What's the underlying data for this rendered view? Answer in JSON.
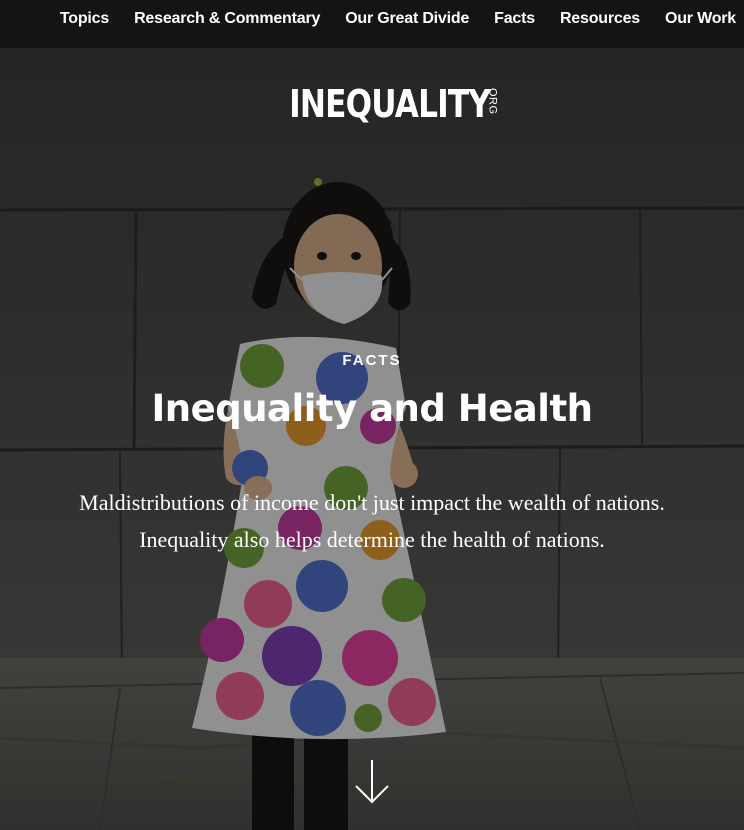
{
  "nav": {
    "items": [
      {
        "label": "Topics"
      },
      {
        "label": "Research & Commentary"
      },
      {
        "label": "Our Great Divide"
      },
      {
        "label": "Facts"
      },
      {
        "label": "Resources"
      },
      {
        "label": "Our Work"
      }
    ]
  },
  "logo": {
    "text": "INEQUALITY",
    "suffix": "ORG"
  },
  "hero": {
    "eyebrow": "FACTS",
    "title": "Inequality and Health",
    "subtitle_line1": "Maldistributions of income don't just impact the wealth of nations.",
    "subtitle_line2": "Inequality also helps determine the health of nations.",
    "scroll_icon": "arrow-down-icon"
  },
  "colors": {
    "nav_background": "#141414",
    "text": "#ffffff"
  }
}
